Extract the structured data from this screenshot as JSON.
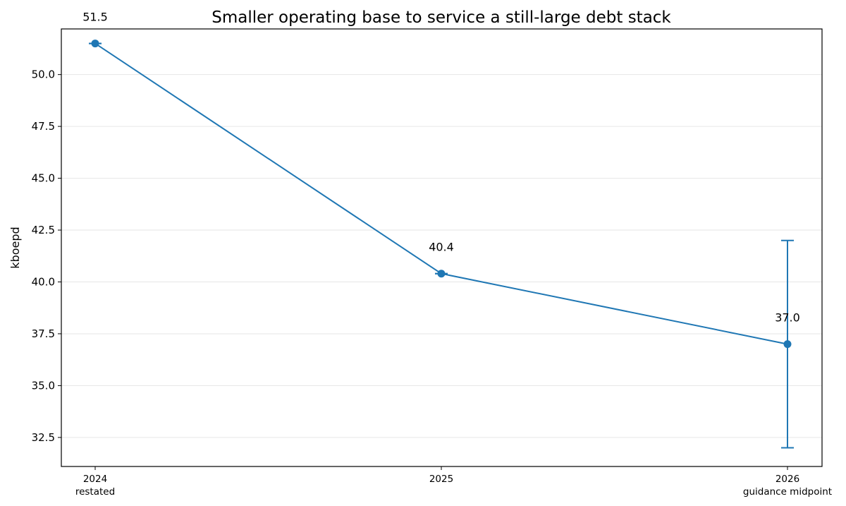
{
  "chart_data": {
    "type": "line",
    "title": "Smaller operating base to service a still-large debt stack",
    "xlabel": "",
    "ylabel": "kboepd",
    "categories": [
      {
        "year": "2024",
        "note": "restated"
      },
      {
        "year": "2025",
        "note": ""
      },
      {
        "year": "2026",
        "note": "guidance midpoint"
      }
    ],
    "series": [
      {
        "values": [
          51.5,
          40.4,
          37.0
        ],
        "error_low": [
          51.5,
          40.4,
          32.0
        ],
        "error_high": [
          51.5,
          40.4,
          42.0
        ],
        "data_labels": [
          "51.5",
          "40.4",
          "37.0"
        ]
      }
    ],
    "ylim": [
      31.1,
      52.2
    ],
    "yticks": [
      32.5,
      35.0,
      37.5,
      40.0,
      42.5,
      45.0,
      47.5,
      50.0
    ],
    "ytick_labels": [
      "32.5",
      "35.0",
      "37.5",
      "40.0",
      "42.5",
      "45.0",
      "47.5",
      "50.0"
    ],
    "grid": "horizontal",
    "line_color": "#1f77b4",
    "grid_color": "#e6e6e6"
  }
}
